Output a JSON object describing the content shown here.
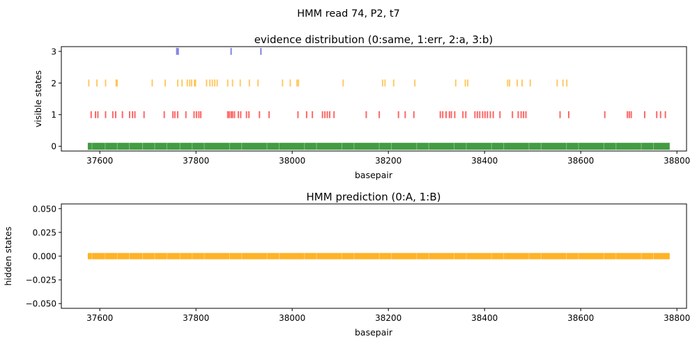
{
  "suptitle": "HMM read 74, P2, t7",
  "colors": {
    "same": "#228b22",
    "err": "#ff0000",
    "a": "#ffa500",
    "b": "#0000cd",
    "pred_A": "#ffa500"
  },
  "chart_data": [
    {
      "type": "scatter",
      "marker": "vertical-tick",
      "title": "evidence distribution (0:same, 1:err, 2:a, 3:b)",
      "xlabel": "basepair",
      "ylabel": "visible states",
      "xlim": [
        37520,
        38820
      ],
      "ylim": [
        -0.15,
        3.15
      ],
      "xticks": [
        37600,
        37800,
        38000,
        38200,
        38400,
        38600,
        38800
      ],
      "yticks": [
        0,
        1,
        2,
        3
      ],
      "grid": false,
      "series": [
        {
          "state": 0,
          "color": "#228b22",
          "alpha": 0.85,
          "points": "dense",
          "x_range": [
            37575,
            38785
          ]
        },
        {
          "state": 1,
          "color": "#ff0000",
          "alpha": 0.6,
          "x": [
            37582,
            37591,
            37596,
            37612,
            37627,
            37633,
            37647,
            37662,
            37668,
            37673,
            37692,
            37734,
            37752,
            37756,
            37762,
            37779,
            37796,
            37801,
            37806,
            37810,
            37866,
            37869,
            37873,
            37876,
            37880,
            37888,
            37893,
            37905,
            37910,
            37932,
            37952,
            38012,
            38030,
            38042,
            38063,
            38068,
            38073,
            38078,
            38087,
            38154,
            38181,
            38221,
            38235,
            38253,
            38308,
            38313,
            38320,
            38327,
            38331,
            38338,
            38355,
            38361,
            38380,
            38385,
            38390,
            38396,
            38401,
            38406,
            38412,
            38418,
            38432,
            38458,
            38470,
            38476,
            38481,
            38486,
            38557,
            38575,
            38650,
            38697,
            38701,
            38705,
            38733,
            38758,
            38766,
            38776
          ]
        },
        {
          "state": 2,
          "color": "#ffa500",
          "alpha": 0.6,
          "x": [
            37577,
            37594,
            37612,
            37634,
            37636,
            37709,
            37736,
            37762,
            37771,
            37782,
            37787,
            37791,
            37797,
            37799,
            37822,
            37829,
            37834,
            37839,
            37844,
            37866,
            37876,
            37892,
            37911,
            37929,
            37980,
            37996,
            38010,
            38013,
            38106,
            38188,
            38193,
            38211,
            38255,
            38340,
            38360,
            38365,
            38448,
            38452,
            38468,
            38478,
            38495,
            38551,
            38563,
            38571
          ]
        },
        {
          "state": 3,
          "color": "#0000cd",
          "alpha": 0.5,
          "x": [
            37760,
            37763,
            37873,
            37935
          ]
        }
      ]
    },
    {
      "type": "scatter",
      "marker": "vertical-tick",
      "title": "HMM prediction (0:A, 1:B)",
      "xlabel": "basepair",
      "ylabel": "hidden states",
      "xlim": [
        37520,
        38820
      ],
      "ylim": [
        -0.055,
        0.055
      ],
      "xticks": [
        37600,
        37800,
        38000,
        38200,
        38400,
        38600,
        38800
      ],
      "yticks": [
        -0.05,
        -0.025,
        0.0,
        0.025,
        0.05
      ],
      "ytick_labels": [
        "−0.050",
        "−0.025",
        "0.000",
        "0.025",
        "0.050"
      ],
      "grid": false,
      "series": [
        {
          "state": 0,
          "color": "#ffa500",
          "alpha": 0.85,
          "points": "dense",
          "x_range": [
            37575,
            38785
          ]
        }
      ]
    }
  ]
}
